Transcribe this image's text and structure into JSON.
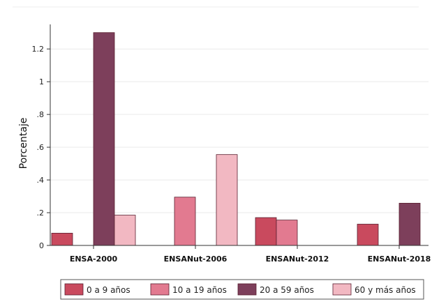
{
  "chart_data": {
    "type": "bar",
    "ylabel": "Porcentaje",
    "xlabel": "",
    "ylim": [
      0,
      1.35
    ],
    "y_ticks": [
      0,
      0.2,
      0.4,
      0.6,
      0.8,
      1,
      1.2
    ],
    "y_tick_labels": [
      "0",
      ".2",
      ".4",
      ".6",
      ".8",
      "1",
      "1.2"
    ],
    "categories": [
      "ENSA-2000",
      "ENSANut-2006",
      "ENSANut-2012",
      "ENSANut-2018"
    ],
    "series": [
      {
        "name": "0 a 9 años",
        "color": "#c94a5e",
        "values": [
          0.075,
          null,
          0.17,
          0.13
        ]
      },
      {
        "name": "10 a 19 años",
        "color": "#e27a90",
        "values": [
          null,
          0.295,
          0.155,
          null
        ]
      },
      {
        "name": "20 a 59 años",
        "color": "#7d3f5b",
        "values": [
          1.3,
          null,
          null,
          0.258
        ]
      },
      {
        "name": "60 y más años",
        "color": "#f2b8c2",
        "values": [
          0.185,
          0.555,
          null,
          null
        ]
      }
    ],
    "legend_position": "bottom",
    "grid": true
  }
}
